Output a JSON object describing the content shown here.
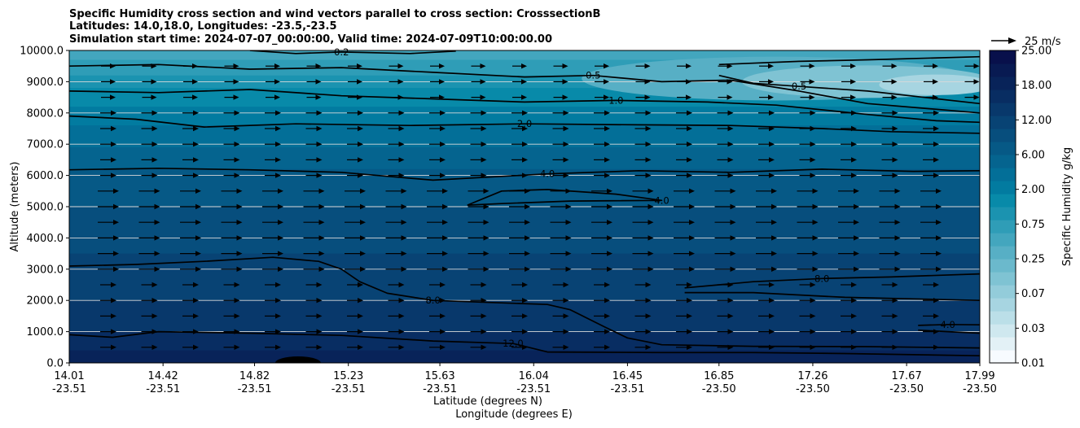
{
  "chart_data": {
    "type": "contourf",
    "title": [
      "Specific Humidity cross section and wind vectors parallel to cross section: CrosssectionB",
      "Latitudes: 14.0,18.0, Longitudes: -23.5,-23.5",
      "Simulation start time: 2024-07-07_00:00:00, Valid time: 2024-07-09T10:00:00.00"
    ],
    "xlabel_lat": "Latitude (degrees N)",
    "xlabel_lon": "Longitude (degrees E)",
    "ylabel": "Altitude (meters)",
    "ylim": [
      0,
      10000
    ],
    "xlim": [
      14.01,
      17.99
    ],
    "y_ticks": [
      "0.0",
      "1000.0",
      "2000.0",
      "3000.0",
      "4000.0",
      "5000.0",
      "6000.0",
      "7000.0",
      "8000.0",
      "9000.0",
      "10000.0"
    ],
    "x_ticks": [
      {
        "lat": "14.01",
        "lon": "-23.51",
        "v": 14.01
      },
      {
        "lat": "14.42",
        "lon": "-23.51",
        "v": 14.42
      },
      {
        "lat": "14.82",
        "lon": "-23.51",
        "v": 14.82
      },
      {
        "lat": "15.23",
        "lon": "-23.51",
        "v": 15.23
      },
      {
        "lat": "15.63",
        "lon": "-23.51",
        "v": 15.63
      },
      {
        "lat": "16.04",
        "lon": "-23.51",
        "v": 16.04
      },
      {
        "lat": "16.45",
        "lon": "-23.51",
        "v": 16.45
      },
      {
        "lat": "16.85",
        "lon": "-23.50",
        "v": 16.85
      },
      {
        "lat": "17.26",
        "lon": "-23.50",
        "v": 17.26
      },
      {
        "lat": "17.67",
        "lon": "-23.50",
        "v": 17.67
      },
      {
        "lat": "17.99",
        "lon": "-23.50",
        "v": 17.99
      }
    ],
    "colorbar": {
      "label": "Specific Humidity g/kg",
      "levels": [
        0.01,
        0.02,
        0.03,
        0.05,
        0.07,
        0.1,
        0.15,
        0.25,
        0.35,
        0.5,
        0.75,
        1,
        1.5,
        2,
        3,
        4,
        6,
        8,
        10,
        12,
        15,
        18,
        21,
        25
      ],
      "tick_labels": [
        "0.01",
        "0.03",
        "0.07",
        "0.25",
        "0.75",
        "2.00",
        "6.00",
        "12.00",
        "18.00",
        "25.00"
      ],
      "colors": [
        "#f7fbff",
        "#e3f1f6",
        "#cfe8ef",
        "#bbdfe8",
        "#a7d5e1",
        "#93ccda",
        "#7fc3d3",
        "#6bb9cc",
        "#57afc5",
        "#43a6be",
        "#2f9db7",
        "#1b93b0",
        "#088aa9",
        "#027ba0",
        "#036f98",
        "#05648f",
        "#065986",
        "#074e7d",
        "#084374",
        "#08386b",
        "#082d62",
        "#082359",
        "#081a52",
        "#08104b"
      ]
    },
    "wind_key": {
      "label": "25 m/s",
      "speed": 25
    },
    "contours": [
      {
        "level": 12.0,
        "label": "12.0",
        "points": [
          [
            14.01,
            900
          ],
          [
            14.2,
            820
          ],
          [
            14.4,
            1000
          ],
          [
            14.8,
            950
          ],
          [
            15.2,
            880
          ],
          [
            15.6,
            700
          ],
          [
            15.95,
            620
          ],
          [
            16.1,
            350
          ],
          [
            16.6,
            330
          ],
          [
            17.0,
            330
          ],
          [
            17.4,
            300
          ],
          [
            17.99,
            230
          ]
        ]
      },
      {
        "level": 8.0,
        "label": "8.0",
        "points": [
          [
            14.01,
            3100
          ],
          [
            14.3,
            3150
          ],
          [
            14.6,
            3250
          ],
          [
            14.9,
            3380
          ],
          [
            15.1,
            3250
          ],
          [
            15.2,
            3000
          ],
          [
            15.28,
            2600
          ],
          [
            15.4,
            2230
          ],
          [
            15.6,
            2000
          ],
          [
            16.1,
            1870
          ],
          [
            16.2,
            1700
          ],
          [
            16.35,
            1150
          ],
          [
            16.45,
            800
          ],
          [
            16.6,
            580
          ],
          [
            17.0,
            530
          ],
          [
            17.5,
            520
          ],
          [
            17.99,
            480
          ]
        ]
      },
      {
        "level": 8.0,
        "label": "8.0",
        "points": [
          [
            16.7,
            2400
          ],
          [
            17.0,
            2600
          ],
          [
            17.3,
            2700
          ],
          [
            17.6,
            2750
          ],
          [
            17.99,
            2850
          ]
        ]
      },
      {
        "level": 8.0,
        "label": "",
        "points": [
          [
            16.7,
            2250
          ],
          [
            17.0,
            2250
          ],
          [
            17.4,
            2100
          ],
          [
            17.7,
            2050
          ],
          [
            17.99,
            2000
          ]
        ]
      },
      {
        "level": 4.0,
        "label": "4.0",
        "points": [
          [
            17.72,
            1200
          ],
          [
            17.85,
            1230
          ],
          [
            17.99,
            1220
          ]
        ]
      },
      {
        "level": 4.0,
        "label": "",
        "points": [
          [
            17.72,
            1050
          ],
          [
            17.85,
            1000
          ],
          [
            17.99,
            950
          ]
        ]
      },
      {
        "level": 4.0,
        "label": "4.0",
        "points": [
          [
            14.01,
            6180
          ],
          [
            14.4,
            6230
          ],
          [
            14.8,
            6180
          ],
          [
            15.2,
            6100
          ],
          [
            15.6,
            5850
          ],
          [
            16.1,
            6050
          ],
          [
            16.5,
            6150
          ],
          [
            16.9,
            6100
          ],
          [
            17.3,
            6200
          ],
          [
            17.7,
            6130
          ],
          [
            17.99,
            6150
          ]
        ]
      },
      {
        "level": 4.0,
        "label": "4.0",
        "points": [
          [
            15.75,
            5050
          ],
          [
            15.9,
            5500
          ],
          [
            16.1,
            5550
          ],
          [
            16.4,
            5400
          ],
          [
            16.6,
            5200
          ],
          [
            16.2,
            5180
          ],
          [
            15.9,
            5100
          ],
          [
            15.75,
            5050
          ]
        ]
      },
      {
        "level": 2.0,
        "label": "2.0",
        "points": [
          [
            14.01,
            7900
          ],
          [
            14.3,
            7800
          ],
          [
            14.6,
            7550
          ],
          [
            15.0,
            7650
          ],
          [
            15.5,
            7600
          ],
          [
            16.0,
            7650
          ],
          [
            16.5,
            7620
          ],
          [
            16.9,
            7600
          ],
          [
            17.3,
            7500
          ],
          [
            17.6,
            7400
          ],
          [
            17.99,
            7350
          ]
        ]
      },
      {
        "level": 1.0,
        "label": "1.0",
        "points": [
          [
            14.01,
            8700
          ],
          [
            14.4,
            8650
          ],
          [
            14.8,
            8750
          ],
          [
            15.2,
            8550
          ],
          [
            15.6,
            8450
          ],
          [
            16.0,
            8350
          ],
          [
            16.4,
            8400
          ],
          [
            16.8,
            8350
          ],
          [
            17.1,
            8250
          ],
          [
            17.5,
            7950
          ],
          [
            17.8,
            7750
          ],
          [
            17.99,
            7700
          ]
        ]
      },
      {
        "level": 0.5,
        "label": "0.5",
        "points": [
          [
            14.01,
            9500
          ],
          [
            14.4,
            9550
          ],
          [
            14.8,
            9400
          ],
          [
            15.2,
            9450
          ],
          [
            15.6,
            9300
          ],
          [
            16.0,
            9150
          ],
          [
            16.3,
            9200
          ],
          [
            16.6,
            9000
          ],
          [
            16.9,
            9050
          ],
          [
            17.2,
            8700
          ],
          [
            17.5,
            8300
          ],
          [
            17.99,
            8000
          ]
        ]
      },
      {
        "level": 0.2,
        "label": "0.2",
        "points": [
          [
            14.8,
            10000
          ],
          [
            15.0,
            9900
          ],
          [
            15.2,
            9950
          ],
          [
            15.5,
            9900
          ],
          [
            15.7,
            9980
          ]
        ]
      },
      {
        "level": 0.5,
        "label": "0.5",
        "points": [
          [
            16.85,
            9200
          ],
          [
            17.0,
            8950
          ],
          [
            17.2,
            8850
          ],
          [
            17.5,
            8700
          ],
          [
            17.99,
            8300
          ]
        ]
      },
      {
        "level": 0.5,
        "label": "",
        "points": [
          [
            16.85,
            9550
          ],
          [
            17.2,
            9650
          ],
          [
            17.5,
            9700
          ],
          [
            17.99,
            9800
          ]
        ]
      }
    ]
  }
}
